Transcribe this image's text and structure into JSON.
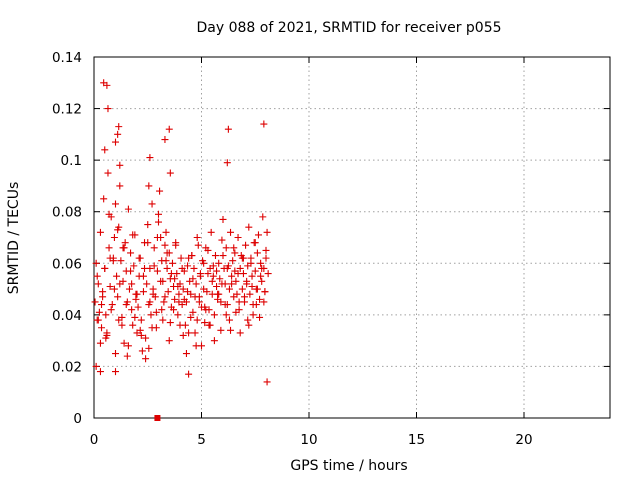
{
  "chart_data": {
    "type": "scatter",
    "title": "Day 088 of 2021, SRMTID for receiver p055",
    "xlabel": "GPS time / hours",
    "ylabel": "SRMTID / TECUs",
    "xlim": [
      0,
      24
    ],
    "ylim": [
      0,
      0.14
    ],
    "x_ticks": [
      0,
      5,
      10,
      15,
      20
    ],
    "x_tick_labels": [
      "0",
      "5",
      "10",
      "15",
      "20"
    ],
    "y_ticks": [
      0,
      0.02,
      0.04,
      0.06,
      0.08,
      0.1,
      0.12,
      0.14
    ],
    "y_tick_labels": [
      "0",
      "0.02",
      "0.04",
      "0.06",
      "0.08",
      "0.1",
      "0.12",
      "0.14"
    ],
    "grid": true,
    "marker": "plus",
    "series_color": "#dd0000",
    "extra_marks": [
      {
        "x": 2.95,
        "y": 0,
        "marker": "square"
      }
    ],
    "series": [
      {
        "name": "SRMTID",
        "x": [
          0.05,
          0.1,
          0.15,
          0.2,
          0.25,
          0.3,
          0.35,
          0.4,
          0.45,
          0.5,
          0.55,
          0.6,
          0.65,
          0.7,
          0.75,
          0.8,
          0.85,
          0.9,
          0.95,
          1.0,
          1.05,
          1.1,
          1.15,
          1.2,
          1.25,
          1.3,
          1.35,
          1.4,
          1.45,
          1.5,
          1.55,
          1.6,
          1.65,
          1.7,
          1.75,
          1.8,
          1.85,
          1.9,
          1.95,
          2.0,
          2.05,
          2.1,
          2.15,
          2.2,
          2.25,
          2.3,
          2.35,
          2.4,
          2.45,
          2.5,
          2.55,
          2.6,
          2.65,
          2.7,
          2.75,
          2.8,
          2.85,
          2.9,
          2.95,
          3.0,
          3.05,
          3.1,
          3.15,
          3.2,
          3.25,
          3.3,
          3.35,
          3.4,
          3.45,
          3.5,
          3.55,
          3.6,
          3.65,
          3.7,
          3.75,
          3.8,
          3.85,
          3.9,
          3.95,
          4.0,
          4.05,
          4.1,
          4.15,
          4.2,
          4.25,
          4.3,
          4.35,
          4.4,
          4.45,
          4.5,
          4.55,
          4.6,
          4.65,
          4.7,
          4.75,
          4.8,
          4.85,
          4.9,
          4.95,
          5.0,
          5.05,
          5.1,
          5.15,
          5.2,
          5.25,
          5.3,
          5.35,
          5.4,
          5.45,
          5.5,
          5.55,
          5.6,
          5.65,
          5.7,
          5.75,
          5.8,
          5.85,
          5.9,
          5.95,
          6.0,
          6.05,
          6.1,
          6.15,
          6.2,
          6.25,
          6.3,
          6.35,
          6.4,
          6.45,
          6.5,
          6.55,
          6.6,
          6.65,
          6.7,
          6.75,
          6.8,
          6.85,
          6.9,
          6.95,
          7.0,
          7.05,
          7.1,
          7.15,
          7.2,
          7.25,
          7.3,
          7.35,
          7.4,
          7.45,
          7.5,
          7.55,
          7.6,
          7.65,
          7.7,
          7.75,
          7.8,
          7.85,
          7.9,
          7.95,
          8.0,
          8.05,
          8.1,
          0.1,
          0.2,
          0.3,
          0.4,
          0.5,
          0.6,
          0.7,
          0.8,
          0.9,
          1.0,
          1.1,
          1.2,
          1.3,
          1.4,
          1.5,
          1.6,
          1.7,
          1.8,
          1.9,
          2.0,
          2.1,
          2.2,
          2.3,
          2.4,
          2.5,
          2.6,
          2.7,
          2.8,
          2.9,
          3.0,
          3.1,
          3.2,
          3.3,
          3.4,
          3.5,
          3.6,
          3.7,
          3.8,
          3.9,
          4.0,
          4.1,
          4.2,
          4.3,
          4.4,
          4.5,
          4.6,
          4.7,
          4.8,
          4.9,
          5.0,
          5.1,
          5.2,
          5.3,
          5.4,
          5.5,
          5.6,
          5.7,
          5.8,
          5.9,
          6.0,
          6.1,
          6.2,
          6.3,
          6.4,
          6.5,
          6.6,
          6.7,
          6.8,
          6.9,
          7.0,
          7.1,
          7.2,
          7.3,
          7.4,
          7.5,
          7.6,
          7.7,
          7.8,
          7.9,
          8.0,
          0.15,
          0.35,
          0.55,
          0.75,
          0.95,
          1.15,
          1.35,
          1.55,
          1.75,
          1.95,
          2.15,
          2.35,
          2.55,
          2.75,
          2.95,
          3.15,
          3.35,
          3.55,
          3.75,
          3.95,
          4.15,
          4.35,
          4.55,
          4.75,
          4.95,
          5.15,
          5.35,
          5.55,
          5.75,
          5.95,
          6.15,
          6.35,
          6.55,
          6.75,
          6.95,
          7.15,
          7.35,
          7.55,
          7.75,
          7.95,
          0.45,
          0.5,
          0.6,
          0.65,
          1.0,
          1.1,
          1.15,
          1.2,
          2.55,
          2.6,
          3.3,
          3.5,
          3.55,
          6.25,
          6.2,
          8.05,
          7.9,
          1.0,
          0.3,
          4.4
        ],
        "y": [
          0.045,
          0.06,
          0.038,
          0.052,
          0.041,
          0.072,
          0.035,
          0.049,
          0.085,
          0.058,
          0.04,
          0.032,
          0.095,
          0.066,
          0.051,
          0.078,
          0.044,
          0.062,
          0.07,
          0.083,
          0.055,
          0.047,
          0.074,
          0.09,
          0.061,
          0.039,
          0.053,
          0.029,
          0.068,
          0.057,
          0.045,
          0.081,
          0.05,
          0.064,
          0.042,
          0.036,
          0.059,
          0.071,
          0.048,
          0.033,
          0.043,
          0.055,
          0.062,
          0.038,
          0.026,
          0.049,
          0.068,
          0.031,
          0.052,
          0.075,
          0.044,
          0.058,
          0.04,
          0.083,
          0.05,
          0.066,
          0.047,
          0.035,
          0.057,
          0.079,
          0.088,
          0.07,
          0.061,
          0.053,
          0.045,
          0.067,
          0.072,
          0.058,
          0.049,
          0.064,
          0.054,
          0.043,
          0.06,
          0.051,
          0.046,
          0.068,
          0.056,
          0.04,
          0.048,
          0.052,
          0.062,
          0.044,
          0.05,
          0.057,
          0.036,
          0.045,
          0.059,
          0.033,
          0.053,
          0.048,
          0.063,
          0.041,
          0.058,
          0.047,
          0.052,
          0.038,
          0.067,
          0.045,
          0.055,
          0.043,
          0.061,
          0.05,
          0.037,
          0.066,
          0.049,
          0.056,
          0.042,
          0.058,
          0.072,
          0.048,
          0.055,
          0.04,
          0.063,
          0.051,
          0.046,
          0.06,
          0.054,
          0.045,
          0.069,
          0.077,
          0.058,
          0.052,
          0.066,
          0.044,
          0.059,
          0.05,
          0.072,
          0.055,
          0.061,
          0.047,
          0.064,
          0.053,
          0.048,
          0.07,
          0.042,
          0.058,
          0.063,
          0.05,
          0.056,
          0.045,
          0.067,
          0.052,
          0.059,
          0.074,
          0.048,
          0.062,
          0.055,
          0.04,
          0.068,
          0.057,
          0.05,
          0.064,
          0.071,
          0.046,
          0.06,
          0.053,
          0.078,
          0.058,
          0.049,
          0.065,
          0.072,
          0.056,
          0.02,
          0.038,
          0.029,
          0.047,
          0.058,
          0.033,
          0.079,
          0.042,
          0.061,
          0.025,
          0.073,
          0.052,
          0.036,
          0.066,
          0.044,
          0.028,
          0.057,
          0.071,
          0.039,
          0.048,
          0.062,
          0.032,
          0.055,
          0.023,
          0.068,
          0.045,
          0.035,
          0.059,
          0.041,
          0.076,
          0.053,
          0.038,
          0.047,
          0.064,
          0.03,
          0.056,
          0.042,
          0.067,
          0.051,
          0.036,
          0.058,
          0.046,
          0.025,
          0.062,
          0.039,
          0.054,
          0.033,
          0.07,
          0.047,
          0.028,
          0.06,
          0.042,
          0.065,
          0.036,
          0.053,
          0.03,
          0.057,
          0.048,
          0.034,
          0.063,
          0.044,
          0.058,
          0.038,
          0.052,
          0.066,
          0.041,
          0.056,
          0.033,
          0.062,
          0.047,
          0.053,
          0.036,
          0.06,
          0.044,
          0.068,
          0.05,
          0.039,
          0.058,
          0.045,
          0.062,
          0.055,
          0.044,
          0.031,
          0.062,
          0.05,
          0.038,
          0.066,
          0.024,
          0.052,
          0.046,
          0.034,
          0.058,
          0.027,
          0.048,
          0.07,
          0.042,
          0.061,
          0.037,
          0.054,
          0.045,
          0.032,
          0.049,
          0.063,
          0.028,
          0.056,
          0.043,
          0.036,
          0.059,
          0.048,
          0.052,
          0.04,
          0.034,
          0.057,
          0.045,
          0.062,
          0.038,
          0.051,
          0.044,
          0.055,
          0.049,
          0.13,
          0.104,
          0.129,
          0.12,
          0.107,
          0.11,
          0.113,
          0.098,
          0.09,
          0.101,
          0.108,
          0.112,
          0.095,
          0.112,
          0.099,
          0.014,
          0.114,
          0.018,
          0.018,
          0.017
        ]
      }
    ]
  }
}
